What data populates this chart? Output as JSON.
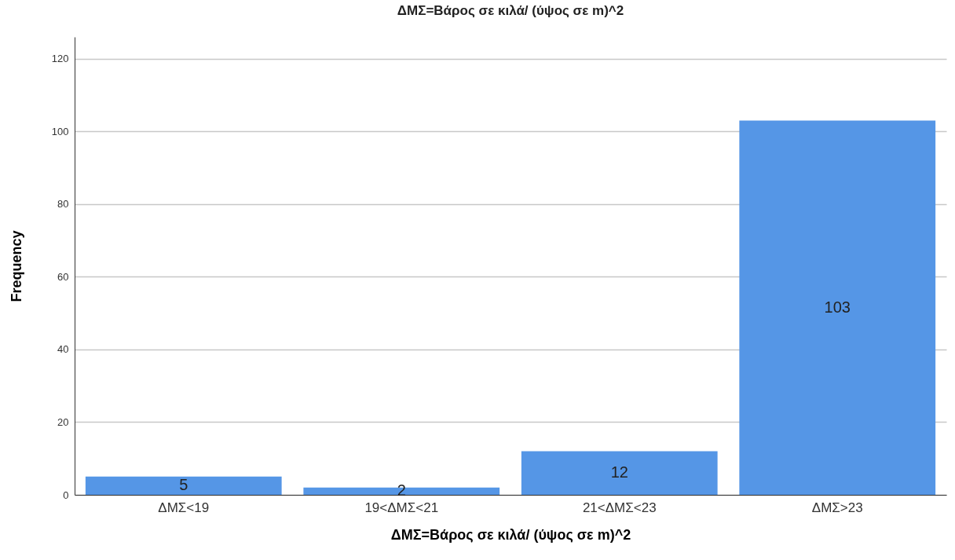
{
  "chart_data": {
    "type": "bar",
    "title": "ΔΜΣ=Βάρος σε κιλά/ (ύψος σε m)^2",
    "xlabel": "ΔΜΣ=Βάρος σε κιλά/ (ύψος σε m)^2",
    "ylabel": "Frequency",
    "categories": [
      "ΔΜΣ<19",
      "19<ΔΜΣ<21",
      "21<ΔΜΣ<23",
      "ΔΜΣ>23"
    ],
    "values": [
      5,
      2,
      12,
      103
    ],
    "color": "#5596e6",
    "ylim": [
      0,
      126
    ],
    "yticks": [
      0,
      20,
      40,
      60,
      80,
      100,
      120
    ],
    "grid": "y",
    "data_labels": true
  }
}
